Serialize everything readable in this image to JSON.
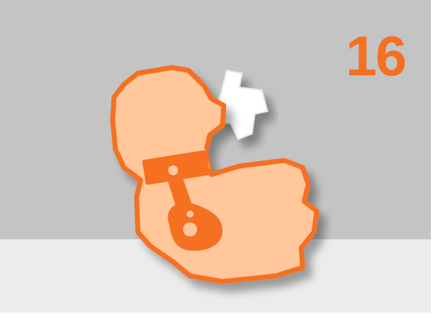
{
  "tile": {
    "level_number": "16",
    "icon": "engine-piston-icon",
    "plug_icon": "puzzle-connector-icon"
  },
  "colors": {
    "accent": "#f57021",
    "fill": "#ffc79a",
    "band_top": "#c4c4c4",
    "band_bottom": "#ececec",
    "plug": "#ffffff"
  }
}
